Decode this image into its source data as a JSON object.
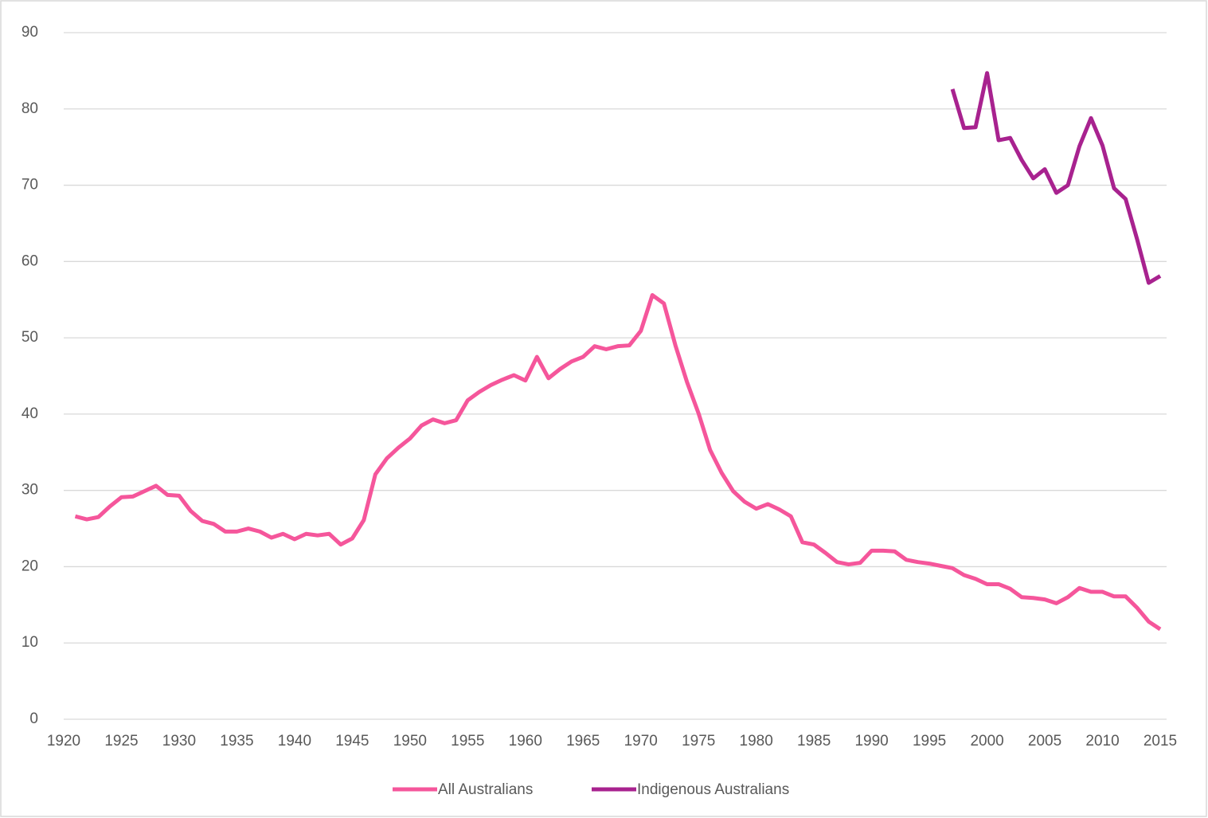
{
  "chart_data": {
    "type": "line",
    "x": [
      1921,
      1922,
      1923,
      1924,
      1925,
      1926,
      1927,
      1928,
      1929,
      1930,
      1931,
      1932,
      1933,
      1934,
      1935,
      1936,
      1937,
      1938,
      1939,
      1940,
      1941,
      1942,
      1943,
      1944,
      1945,
      1946,
      1947,
      1948,
      1949,
      1950,
      1951,
      1952,
      1953,
      1954,
      1955,
      1956,
      1957,
      1958,
      1959,
      1960,
      1961,
      1962,
      1963,
      1964,
      1965,
      1966,
      1967,
      1968,
      1969,
      1970,
      1971,
      1972,
      1973,
      1974,
      1975,
      1976,
      1977,
      1978,
      1979,
      1980,
      1981,
      1982,
      1983,
      1984,
      1985,
      1986,
      1987,
      1988,
      1989,
      1990,
      1991,
      1992,
      1993,
      1994,
      1995,
      1996,
      1997,
      1998,
      1999,
      2000,
      2001,
      2002,
      2003,
      2004,
      2005,
      2006,
      2007,
      2008,
      2009,
      2010,
      2011,
      2012,
      2013,
      2014,
      2015
    ],
    "series": [
      {
        "name": "All Australians",
        "color": "#f5569b",
        "values": [
          26.6,
          26.2,
          26.5,
          27.9,
          29.1,
          29.2,
          29.9,
          30.6,
          29.4,
          29.3,
          27.3,
          26.0,
          25.6,
          24.6,
          24.6,
          25.0,
          24.6,
          23.8,
          24.3,
          23.6,
          24.3,
          24.1,
          24.3,
          22.9,
          23.7,
          26.1,
          32.1,
          34.2,
          35.6,
          36.8,
          38.5,
          39.3,
          38.8,
          39.2,
          41.8,
          42.9,
          43.8,
          44.5,
          45.1,
          44.4,
          47.5,
          44.7,
          45.9,
          46.9,
          47.5,
          48.9,
          48.5,
          48.9,
          49.0,
          50.9,
          55.6,
          54.5,
          49.0,
          44.2,
          40.1,
          35.3,
          32.3,
          29.9,
          28.5,
          27.6,
          28.2,
          27.5,
          26.6,
          23.2,
          22.9,
          21.8,
          20.6,
          20.3,
          20.5,
          22.1,
          22.1,
          22.0,
          20.9,
          20.6,
          20.4,
          20.1,
          19.8,
          18.9,
          18.4,
          17.7,
          17.7,
          17.1,
          16.0,
          15.9,
          15.7,
          15.2,
          16.0,
          17.2,
          16.7,
          16.7,
          16.1,
          16.1,
          14.6,
          12.8,
          11.8
        ]
      },
      {
        "name": "Indigenous Australians",
        "color": "#a8228f",
        "values": [
          null,
          null,
          null,
          null,
          null,
          null,
          null,
          null,
          null,
          null,
          null,
          null,
          null,
          null,
          null,
          null,
          null,
          null,
          null,
          null,
          null,
          null,
          null,
          null,
          null,
          null,
          null,
          null,
          null,
          null,
          null,
          null,
          null,
          null,
          null,
          null,
          null,
          null,
          null,
          null,
          null,
          null,
          null,
          null,
          null,
          null,
          null,
          null,
          null,
          null,
          null,
          null,
          null,
          null,
          null,
          null,
          null,
          null,
          null,
          null,
          null,
          null,
          null,
          null,
          null,
          null,
          null,
          null,
          null,
          null,
          null,
          null,
          null,
          null,
          null,
          null,
          82.6,
          77.5,
          77.6,
          84.7,
          75.9,
          76.2,
          73.3,
          70.9,
          72.1,
          69.0,
          70.0,
          75.1,
          78.8,
          75.2,
          69.6,
          68.2,
          62.9,
          57.2,
          58.1
        ]
      }
    ],
    "xlim": [
      1920,
      2015
    ],
    "xticks": [
      1920,
      1925,
      1930,
      1935,
      1940,
      1945,
      1950,
      1955,
      1960,
      1965,
      1970,
      1975,
      1980,
      1985,
      1990,
      1995,
      2000,
      2005,
      2010,
      2015
    ],
    "ylim": [
      0,
      90
    ],
    "yticks": [
      0,
      10,
      20,
      30,
      40,
      50,
      60,
      70,
      80,
      90
    ],
    "grid": true,
    "legend": "bottom"
  }
}
